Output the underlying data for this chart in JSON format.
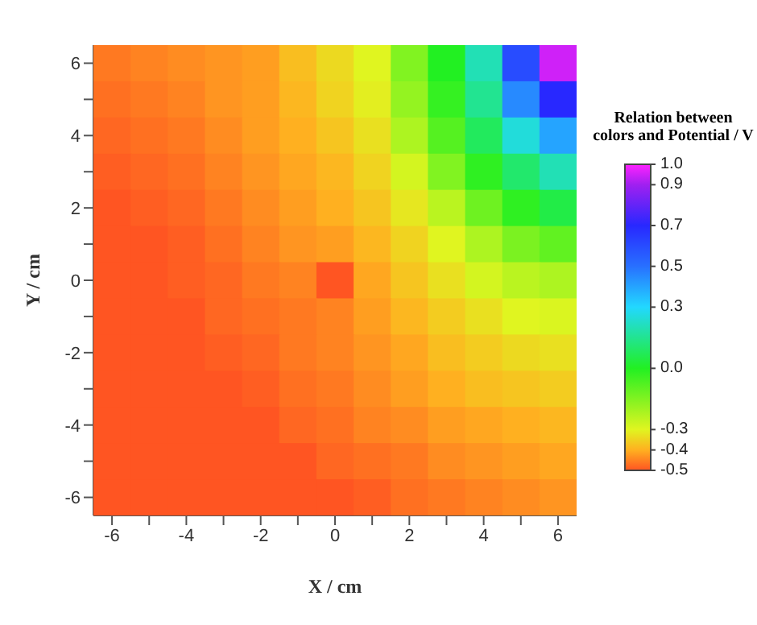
{
  "chart_data": {
    "type": "heatmap",
    "xlabel": "X / cm",
    "ylabel": "Y / cm",
    "clabel": "Relation between colors and Potential / V",
    "categories": [
      "-6",
      null,
      "-4",
      null,
      "-2",
      null,
      "0",
      null,
      "2",
      null,
      "4",
      null,
      "6"
    ],
    "y_categories": [
      "6",
      null,
      "4",
      null,
      "2",
      null,
      "0",
      null,
      "-2",
      null,
      "-4",
      null,
      "-6"
    ],
    "cells": [
      [
        -0.46,
        -0.45,
        -0.44,
        -0.43,
        -0.42,
        -0.38,
        -0.34,
        -0.3,
        -0.15,
        0.0,
        0.2,
        0.6,
        0.95
      ],
      [
        -0.47,
        -0.46,
        -0.45,
        -0.43,
        -0.42,
        -0.39,
        -0.35,
        -0.31,
        -0.18,
        -0.03,
        0.15,
        0.45,
        0.7
      ],
      [
        -0.48,
        -0.47,
        -0.46,
        -0.44,
        -0.42,
        -0.4,
        -0.37,
        -0.33,
        -0.22,
        -0.08,
        0.08,
        0.25,
        0.4
      ],
      [
        -0.49,
        -0.48,
        -0.47,
        -0.45,
        -0.43,
        -0.41,
        -0.39,
        -0.35,
        -0.28,
        -0.15,
        -0.02,
        0.1,
        0.2
      ],
      [
        -0.5,
        -0.49,
        -0.48,
        -0.46,
        -0.44,
        -0.42,
        -0.4,
        -0.37,
        -0.32,
        -0.24,
        -0.12,
        -0.02,
        0.05
      ],
      [
        -0.5,
        -0.5,
        -0.49,
        -0.47,
        -0.45,
        -0.43,
        -0.42,
        -0.39,
        -0.35,
        -0.3,
        -0.22,
        -0.14,
        -0.1
      ],
      [
        -0.5,
        -0.5,
        -0.49,
        -0.48,
        -0.46,
        -0.45,
        -0.5,
        -0.41,
        -0.37,
        -0.33,
        -0.28,
        -0.24,
        -0.22
      ],
      [
        -0.5,
        -0.5,
        -0.5,
        -0.48,
        -0.47,
        -0.46,
        -0.45,
        -0.42,
        -0.39,
        -0.36,
        -0.33,
        -0.3,
        -0.29
      ],
      [
        -0.5,
        -0.5,
        -0.5,
        -0.49,
        -0.48,
        -0.46,
        -0.45,
        -0.43,
        -0.41,
        -0.38,
        -0.36,
        -0.34,
        -0.33
      ],
      [
        -0.5,
        -0.5,
        -0.5,
        -0.5,
        -0.49,
        -0.47,
        -0.46,
        -0.44,
        -0.42,
        -0.4,
        -0.38,
        -0.37,
        -0.36
      ],
      [
        -0.5,
        -0.5,
        -0.5,
        -0.5,
        -0.5,
        -0.48,
        -0.47,
        -0.45,
        -0.44,
        -0.42,
        -0.41,
        -0.4,
        -0.39
      ],
      [
        -0.5,
        -0.5,
        -0.5,
        -0.5,
        -0.5,
        -0.5,
        -0.48,
        -0.47,
        -0.46,
        -0.44,
        -0.43,
        -0.42,
        -0.41
      ],
      [
        -0.5,
        -0.5,
        -0.5,
        -0.5,
        -0.5,
        -0.5,
        -0.5,
        -0.49,
        -0.47,
        -0.46,
        -0.45,
        -0.44,
        -0.43
      ]
    ],
    "clim": [
      -0.5,
      1.0
    ],
    "cticks": [
      {
        "value": 1,
        "label": "1.0"
      },
      0.9,
      0.7,
      0.5,
      0.3,
      {
        "value": 0,
        "label": "0.0"
      },
      -0.3,
      -0.4,
      -0.5
    ],
    "colors": [
      "#ff22ff",
      "#a020f0",
      "#2828ff",
      "#2870ff",
      "#22d8ff",
      "#22f022",
      "#e0f520",
      "#ffb020",
      "#ff5522"
    ]
  }
}
